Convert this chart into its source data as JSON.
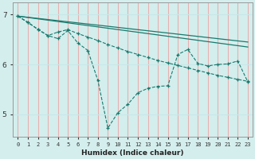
{
  "xlabel": "Humidex (Indice chaleur)",
  "background_color": "#d4eeed",
  "grid_color_h": "#c8e8e8",
  "grid_color_v": "#e8b0b0",
  "line_color": "#1a7a6e",
  "xlim": [
    -0.5,
    23.5
  ],
  "ylim": [
    4.55,
    7.25
  ],
  "yticks": [
    5,
    6,
    7
  ],
  "xticks": [
    0,
    1,
    2,
    3,
    4,
    5,
    6,
    7,
    8,
    9,
    10,
    11,
    12,
    13,
    14,
    15,
    16,
    17,
    18,
    19,
    20,
    21,
    22,
    23
  ],
  "series_jagged": {
    "x": [
      0,
      1,
      2,
      3,
      4,
      5,
      6,
      7,
      8,
      9,
      10,
      11,
      12,
      13,
      14,
      15,
      16,
      17,
      18,
      19,
      20,
      21,
      22,
      23
    ],
    "y": [
      6.97,
      6.85,
      6.7,
      6.58,
      6.52,
      6.68,
      6.43,
      6.28,
      5.68,
      4.72,
      5.03,
      5.2,
      5.43,
      5.52,
      5.56,
      5.57,
      6.2,
      6.3,
      6.02,
      5.97,
      6.0,
      6.01,
      6.07,
      5.65
    ]
  },
  "series_smooth": {
    "x": [
      0,
      1,
      2,
      3,
      4,
      5,
      6,
      7,
      8,
      9,
      10,
      11,
      12,
      13,
      14,
      15,
      16,
      17,
      18,
      19,
      20,
      21,
      22,
      23
    ],
    "y": [
      6.97,
      6.84,
      6.71,
      6.58,
      6.65,
      6.7,
      6.62,
      6.55,
      6.48,
      6.4,
      6.33,
      6.26,
      6.2,
      6.14,
      6.08,
      6.03,
      5.98,
      5.93,
      5.88,
      5.83,
      5.78,
      5.74,
      5.7,
      5.66
    ]
  },
  "line_straight1": {
    "x": [
      0,
      23
    ],
    "y": [
      6.97,
      6.45
    ]
  },
  "line_straight2": {
    "x": [
      0,
      23
    ],
    "y": [
      6.97,
      6.35
    ]
  }
}
